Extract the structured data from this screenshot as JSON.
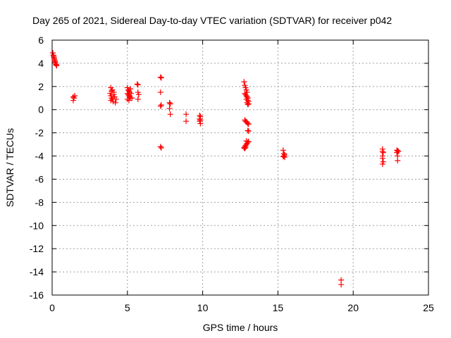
{
  "chart_data": {
    "type": "scatter",
    "title": "Day 265 of 2021, Sidereal Day-to-day VTEC variation (SDTVAR) for receiver p042",
    "xlabel": "GPS time / hours",
    "ylabel": "SDTVAR / TECUs",
    "xlim": [
      0,
      25
    ],
    "ylim": [
      -16,
      6
    ],
    "xticks": [
      0,
      5,
      10,
      15,
      20,
      25
    ],
    "yticks": [
      -16,
      -14,
      -12,
      -10,
      -8,
      -6,
      -4,
      -2,
      0,
      2,
      4,
      6
    ],
    "grid": true,
    "marker": "+",
    "color": "#ff0000",
    "series": [
      {
        "name": "SDTVAR",
        "points": [
          [
            0.05,
            4.9
          ],
          [
            0.08,
            4.7
          ],
          [
            0.1,
            4.6
          ],
          [
            0.12,
            4.5
          ],
          [
            0.14,
            4.4
          ],
          [
            0.16,
            4.3
          ],
          [
            0.18,
            4.2
          ],
          [
            0.2,
            4.1
          ],
          [
            0.22,
            4.0
          ],
          [
            0.25,
            3.9
          ],
          [
            0.28,
            3.85
          ],
          [
            0.3,
            3.8
          ],
          [
            1.4,
            1.1
          ],
          [
            1.45,
            1.0
          ],
          [
            1.4,
            0.8
          ],
          [
            1.5,
            1.2
          ],
          [
            3.9,
            1.9
          ],
          [
            3.95,
            1.6
          ],
          [
            3.85,
            1.4
          ],
          [
            3.9,
            1.2
          ],
          [
            3.95,
            1.0
          ],
          [
            4.0,
            0.9
          ],
          [
            3.9,
            0.8
          ],
          [
            4.05,
            0.7
          ],
          [
            4.1,
            1.3
          ],
          [
            4.15,
            1.1
          ],
          [
            4.2,
            0.6
          ],
          [
            4.25,
            0.9
          ],
          [
            4.0,
            1.7
          ],
          [
            4.1,
            1.5
          ],
          [
            5.0,
            1.9
          ],
          [
            5.05,
            1.7
          ],
          [
            5.1,
            1.6
          ],
          [
            5.15,
            1.5
          ],
          [
            5.0,
            1.4
          ],
          [
            5.05,
            1.3
          ],
          [
            5.1,
            1.2
          ],
          [
            5.15,
            1.1
          ],
          [
            5.2,
            1.0
          ],
          [
            5.0,
            0.9
          ],
          [
            5.1,
            0.8
          ],
          [
            5.2,
            1.8
          ],
          [
            5.25,
            1.4
          ],
          [
            5.3,
            1.0
          ],
          [
            5.65,
            2.2
          ],
          [
            5.7,
            2.15
          ],
          [
            5.7,
            1.5
          ],
          [
            5.75,
            1.3
          ],
          [
            5.7,
            0.9
          ],
          [
            7.2,
            2.8
          ],
          [
            7.25,
            2.75
          ],
          [
            7.2,
            1.5
          ],
          [
            7.25,
            0.4
          ],
          [
            7.2,
            0.3
          ],
          [
            7.2,
            -3.2
          ],
          [
            7.25,
            -3.3
          ],
          [
            7.8,
            0.6
          ],
          [
            7.85,
            0.5
          ],
          [
            7.8,
            0.1
          ],
          [
            7.85,
            -0.4
          ],
          [
            8.9,
            -0.4
          ],
          [
            8.9,
            -1.0
          ],
          [
            9.8,
            -0.5
          ],
          [
            9.85,
            -0.6
          ],
          [
            9.8,
            -0.8
          ],
          [
            9.85,
            -0.9
          ],
          [
            9.8,
            -1.0
          ],
          [
            9.85,
            -1.2
          ],
          [
            12.75,
            2.4
          ],
          [
            12.8,
            2.1
          ],
          [
            12.85,
            1.9
          ],
          [
            12.9,
            1.7
          ],
          [
            12.95,
            1.5
          ],
          [
            12.8,
            1.4
          ],
          [
            12.85,
            1.3
          ],
          [
            12.9,
            1.2
          ],
          [
            12.95,
            1.1
          ],
          [
            13.0,
            1.0
          ],
          [
            12.9,
            0.9
          ],
          [
            13.0,
            0.8
          ],
          [
            13.05,
            0.7
          ],
          [
            12.95,
            0.6
          ],
          [
            13.05,
            0.5
          ],
          [
            13.0,
            0.45
          ],
          [
            12.8,
            -0.9
          ],
          [
            12.85,
            -1.0
          ],
          [
            12.9,
            -1.05
          ],
          [
            12.95,
            -1.1
          ],
          [
            13.0,
            -1.2
          ],
          [
            13.05,
            -1.25
          ],
          [
            13.0,
            -1.8
          ],
          [
            13.05,
            -1.85
          ],
          [
            12.75,
            -3.3
          ],
          [
            12.8,
            -3.2
          ],
          [
            12.85,
            -3.1
          ],
          [
            12.9,
            -3.0
          ],
          [
            12.95,
            -2.9
          ],
          [
            13.0,
            -2.8
          ],
          [
            13.05,
            -2.75
          ],
          [
            12.9,
            -2.7
          ],
          [
            12.8,
            -3.35
          ],
          [
            12.85,
            -3.25
          ],
          [
            15.35,
            -3.5
          ],
          [
            15.4,
            -3.8
          ],
          [
            15.45,
            -3.9
          ],
          [
            15.4,
            -4.0
          ],
          [
            15.35,
            -4.05
          ],
          [
            15.45,
            -4.1
          ],
          [
            19.2,
            -14.7
          ],
          [
            19.2,
            -15.1
          ],
          [
            21.95,
            -3.4
          ],
          [
            21.95,
            -3.6
          ],
          [
            22.0,
            -3.7
          ],
          [
            21.95,
            -4.0
          ],
          [
            21.95,
            -4.2
          ],
          [
            22.0,
            -4.5
          ],
          [
            21.95,
            -4.7
          ],
          [
            22.9,
            -3.5
          ],
          [
            22.95,
            -3.55
          ],
          [
            23.0,
            -3.6
          ],
          [
            22.9,
            -3.7
          ],
          [
            22.95,
            -4.0
          ],
          [
            22.95,
            -4.4
          ]
        ]
      }
    ]
  }
}
